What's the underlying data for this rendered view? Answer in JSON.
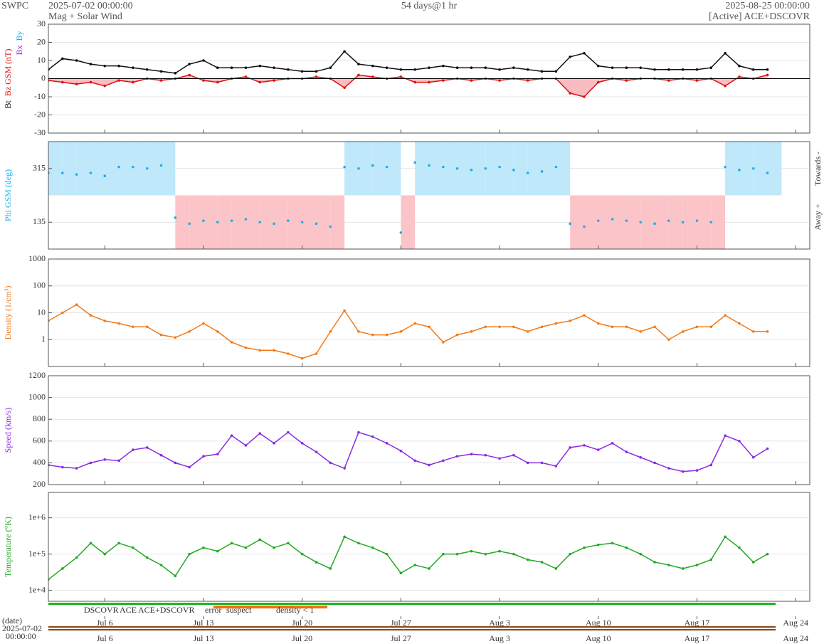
{
  "header": {
    "agency": "SWPC",
    "start": "2025-07-02 00:00:00",
    "product": "Mag + Solar Wind",
    "span": "54 days@1 hr",
    "end": "2025-08-25 00:00:00",
    "source": "[Active] ACE+DSCOVR"
  },
  "time_axis": {
    "x": [
      "2025-07-02",
      "2025-07-03",
      "2025-07-04",
      "2025-07-05",
      "2025-07-06",
      "2025-07-07",
      "2025-07-08",
      "2025-07-09",
      "2025-07-10",
      "2025-07-11",
      "2025-07-12",
      "2025-07-13",
      "2025-07-14",
      "2025-07-15",
      "2025-07-16",
      "2025-07-17",
      "2025-07-18",
      "2025-07-19",
      "2025-07-20",
      "2025-07-21",
      "2025-07-22",
      "2025-07-23",
      "2025-07-24",
      "2025-07-25",
      "2025-07-26",
      "2025-07-27",
      "2025-07-28",
      "2025-07-29",
      "2025-07-30",
      "2025-07-31",
      "2025-08-01",
      "2025-08-02",
      "2025-08-03",
      "2025-08-04",
      "2025-08-05",
      "2025-08-06",
      "2025-08-07",
      "2025-08-08",
      "2025-08-09",
      "2025-08-10",
      "2025-08-11",
      "2025-08-12",
      "2025-08-13",
      "2025-08-14",
      "2025-08-15",
      "2025-08-16",
      "2025-08-17",
      "2025-08-18",
      "2025-08-19",
      "2025-08-20",
      "2025-08-21",
      "2025-08-22"
    ],
    "xlim": [
      "2025-07-02",
      "2025-08-25"
    ],
    "xticks": [
      {
        "value": "2025-07-06",
        "label": "Jul 6"
      },
      {
        "value": "2025-07-13",
        "label": "Jul 13"
      },
      {
        "value": "2025-07-20",
        "label": "Jul 20"
      },
      {
        "value": "2025-07-27",
        "label": "Jul 27"
      },
      {
        "value": "2025-08-03",
        "label": "Aug 3"
      },
      {
        "value": "2025-08-10",
        "label": "Aug 10"
      },
      {
        "value": "2025-08-17",
        "label": "Aug 17"
      },
      {
        "value": "2025-08-24",
        "label": "Aug 24"
      }
    ],
    "date_title": "(date)",
    "date_label": [
      "2025-07-02",
      "00:00:00"
    ]
  },
  "legend": [
    {
      "text": "DSCOVR",
      "color": "#1a1ac8"
    },
    {
      "text": "ACE",
      "color": "#1fb41f"
    },
    {
      "text": "ACE+DSCOVR",
      "color": "#e020c0"
    },
    {
      "text": "error",
      "color": "#e01010"
    },
    {
      "text": "suspect",
      "color": "#f0b000"
    },
    {
      "text": "density < 1",
      "color": "#f07010"
    }
  ],
  "chart_data": [
    {
      "type": "line",
      "ylabels": [
        {
          "text": "Bt",
          "color": "#000000"
        },
        {
          "text": "Bz GSM (nT)",
          "color": "#e01010"
        },
        {
          "text": "Bx",
          "color": "#8a2be2"
        },
        {
          "text": "By",
          "color": "#1ab0e8"
        }
      ],
      "ylim": [
        -30,
        30
      ],
      "yticks": [
        -30,
        -20,
        -10,
        0,
        10,
        20,
        30
      ],
      "grid": true,
      "series": [
        {
          "name": "Bt",
          "color": "#111111",
          "values": [
            5,
            11,
            10,
            8,
            7,
            7,
            6,
            5,
            4,
            3,
            8,
            10,
            6,
            6,
            6,
            7,
            6,
            5,
            4,
            4,
            6,
            15,
            8,
            7,
            6,
            5,
            5,
            6,
            7,
            6,
            6,
            6,
            5,
            6,
            5,
            4,
            4,
            12,
            14,
            7,
            6,
            6,
            6,
            5,
            5,
            5,
            5,
            6,
            14,
            7,
            5,
            5
          ]
        },
        {
          "name": "Bz GSM",
          "color": "#e01010",
          "fill": "#f8a0a8",
          "values": [
            -1,
            -2,
            -3,
            -2,
            -4,
            -1,
            -2,
            0,
            -1,
            0,
            2,
            -1,
            -2,
            0,
            1,
            -2,
            -1,
            0,
            0,
            1,
            0,
            -5,
            2,
            1,
            0,
            1,
            -2,
            -2,
            -1,
            0,
            -1,
            0,
            -1,
            0,
            -1,
            0,
            0,
            -8,
            -10,
            -2,
            0,
            -1,
            0,
            0,
            -1,
            0,
            -1,
            0,
            -4,
            1,
            0,
            2
          ]
        }
      ]
    },
    {
      "type": "phi",
      "ylabels": [
        {
          "text": "Phi GSM (deg)",
          "color": "#1ab0e8"
        }
      ],
      "right_labels": [
        "Towards -",
        "Away +"
      ],
      "ylim": [
        45,
        405
      ],
      "yticks": [
        135,
        315
      ],
      "grid": true,
      "split": 225,
      "toward_color": "#bfe8fb",
      "away_color": "#fbc4c8",
      "series": [
        {
          "name": "Phi",
          "color": "#1ab0e8",
          "values": [
            300,
            300,
            295,
            300,
            290,
            320,
            320,
            315,
            325,
            150,
            130,
            140,
            135,
            140,
            145,
            135,
            130,
            140,
            135,
            130,
            120,
            320,
            315,
            325,
            320,
            100,
            335,
            325,
            320,
            315,
            310,
            315,
            320,
            310,
            300,
            305,
            320,
            130,
            120,
            140,
            145,
            140,
            135,
            130,
            140,
            135,
            140,
            135,
            320,
            310,
            315,
            300
          ]
        }
      ]
    },
    {
      "type": "line",
      "ylabels": [
        {
          "text": "Density (1/cm³)",
          "color": "#f07a1a"
        }
      ],
      "log": true,
      "ylim": [
        0.1,
        1000
      ],
      "yticks": [
        1,
        10,
        100,
        1000
      ],
      "grid": true,
      "series": [
        {
          "name": "Density",
          "color": "#f07a1a",
          "values": [
            5,
            10,
            20,
            8,
            5,
            4,
            3,
            3,
            1.5,
            1.2,
            2,
            4,
            2,
            0.8,
            0.5,
            0.4,
            0.4,
            0.3,
            0.2,
            0.3,
            2,
            12,
            2,
            1.5,
            1.5,
            2,
            4,
            3,
            0.8,
            1.5,
            2,
            3,
            3,
            3,
            2,
            3,
            4,
            5,
            8,
            4,
            3,
            3,
            2,
            3,
            1,
            2,
            3,
            3,
            8,
            4,
            2,
            2
          ]
        }
      ]
    },
    {
      "type": "line",
      "ylabels": [
        {
          "text": "Speed (km/s)",
          "color": "#8a2be2"
        }
      ],
      "ylim": [
        200,
        1200
      ],
      "yticks": [
        200,
        400,
        600,
        800,
        1000,
        1200
      ],
      "grid": true,
      "series": [
        {
          "name": "Speed",
          "color": "#8a2be2",
          "values": [
            380,
            360,
            350,
            400,
            430,
            420,
            520,
            540,
            470,
            400,
            360,
            460,
            480,
            650,
            560,
            670,
            580,
            680,
            580,
            500,
            400,
            350,
            680,
            640,
            580,
            510,
            420,
            380,
            420,
            460,
            480,
            470,
            440,
            470,
            400,
            400,
            370,
            540,
            560,
            520,
            580,
            500,
            450,
            400,
            350,
            320,
            330,
            380,
            650,
            600,
            450,
            530
          ]
        }
      ]
    },
    {
      "type": "line",
      "ylabels": [
        {
          "text": "Temperature (°K)",
          "color": "#22aa22"
        }
      ],
      "log": true,
      "ylim": [
        5000,
        5000000
      ],
      "yticks": [
        {
          "value": 10000,
          "label": "1e+4"
        },
        {
          "value": 100000,
          "label": "1e+5"
        },
        {
          "value": 1000000,
          "label": "1e+6"
        }
      ],
      "grid": true,
      "series": [
        {
          "name": "Temperature",
          "color": "#22aa22",
          "values": [
            20000,
            40000,
            80000,
            200000,
            100000,
            200000,
            150000,
            80000,
            50000,
            25000,
            100000,
            150000,
            120000,
            200000,
            150000,
            250000,
            150000,
            200000,
            100000,
            60000,
            40000,
            300000,
            200000,
            150000,
            100000,
            30000,
            50000,
            40000,
            100000,
            100000,
            120000,
            100000,
            120000,
            100000,
            70000,
            60000,
            40000,
            100000,
            150000,
            180000,
            200000,
            150000,
            100000,
            60000,
            50000,
            40000,
            50000,
            70000,
            300000,
            150000,
            60000,
            100000
          ]
        }
      ]
    }
  ]
}
